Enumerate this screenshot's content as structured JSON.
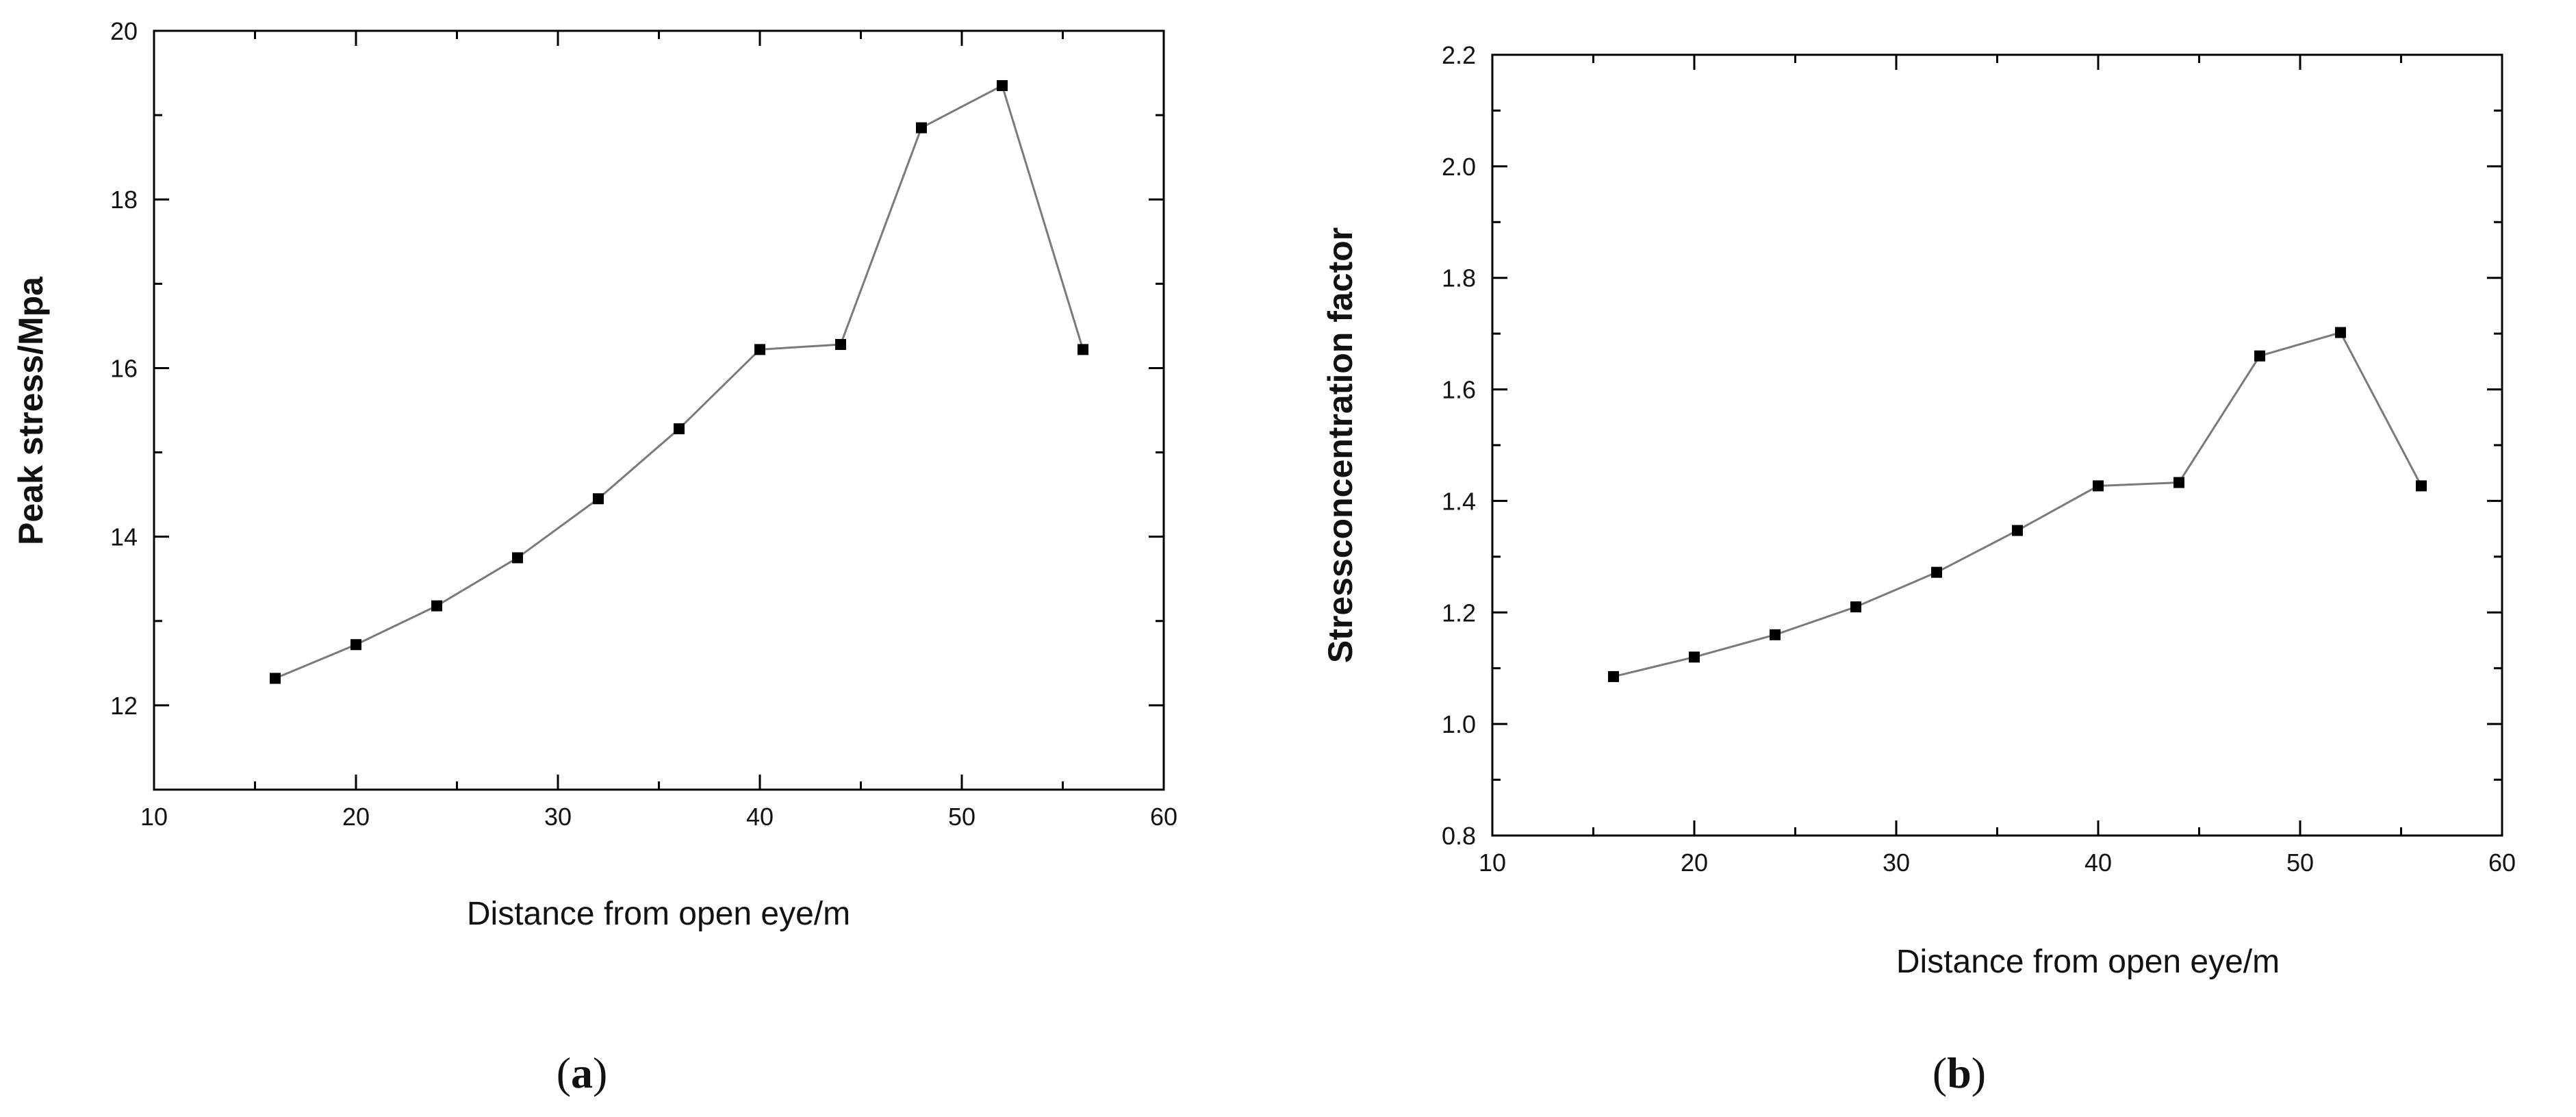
{
  "chart_data": [
    {
      "type": "line",
      "panel_label": "a",
      "xlabel": "Distance from open eye/m",
      "ylabel": "Peak stress/Mpa",
      "xlim": [
        10,
        60
      ],
      "ylim": [
        11,
        20
      ],
      "xticks": [
        10,
        20,
        30,
        40,
        50,
        60
      ],
      "yticks": [
        12,
        14,
        16,
        18,
        20
      ],
      "grid": false,
      "marker": "square",
      "line_color": "#7a7a7a",
      "marker_color": "#000000",
      "series": [
        {
          "x": [
            16,
            20,
            24,
            28,
            32,
            36,
            40,
            44,
            48,
            52,
            56
          ],
          "y": [
            12.32,
            12.72,
            13.18,
            13.75,
            14.45,
            15.28,
            16.22,
            16.28,
            18.85,
            19.35,
            16.22
          ]
        }
      ]
    },
    {
      "type": "line",
      "panel_label": "b",
      "xlabel": "Distance from open eye/m",
      "ylabel": "Stressconcentration factor",
      "xlim": [
        10,
        60
      ],
      "ylim": [
        0.8,
        2.2
      ],
      "xticks": [
        10,
        20,
        30,
        40,
        50,
        60
      ],
      "yticks": [
        0.8,
        1.0,
        1.2,
        1.4,
        1.6,
        1.8,
        2.0,
        2.2
      ],
      "ytick_decimals": 1,
      "grid": false,
      "marker": "square",
      "line_color": "#7a7a7a",
      "marker_color": "#000000",
      "series": [
        {
          "x": [
            16,
            20,
            24,
            28,
            32,
            36,
            40,
            44,
            48,
            52,
            56
          ],
          "y": [
            1.085,
            1.12,
            1.16,
            1.21,
            1.272,
            1.347,
            1.427,
            1.433,
            1.66,
            1.702,
            1.427
          ]
        }
      ]
    }
  ]
}
